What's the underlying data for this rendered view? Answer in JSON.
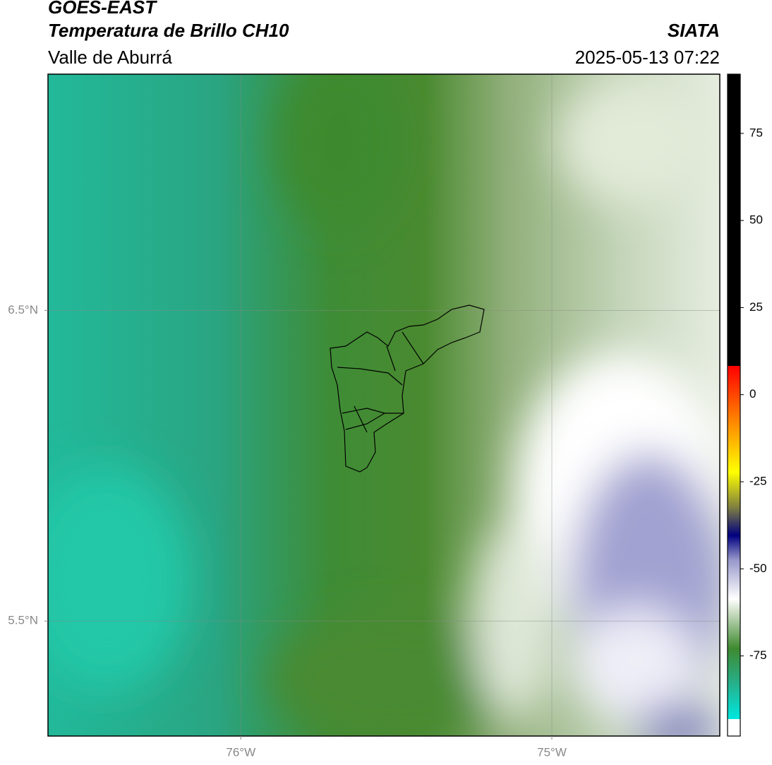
{
  "header": {
    "title": "GOES-EAST",
    "subtitle": "Temperatura de Brillo CH10",
    "region": "Valle de Aburrá",
    "source": "SIATA",
    "timestamp": "2025-05-13 07:22"
  },
  "map": {
    "xlim": [
      -76.62,
      -74.46
    ],
    "ylim": [
      5.13,
      7.26
    ],
    "xticks": [
      {
        "value": -76,
        "label": "76°W"
      },
      {
        "value": -75,
        "label": "75°W"
      }
    ],
    "yticks": [
      {
        "value": 6.5,
        "label": "6.5°N"
      },
      {
        "value": 5.5,
        "label": "5.5°N"
      }
    ],
    "grid": true
  },
  "colorbar": {
    "range": [
      -98,
      92
    ],
    "ticks": [
      75,
      50,
      25,
      0,
      -25,
      -50,
      -75
    ]
  }
}
